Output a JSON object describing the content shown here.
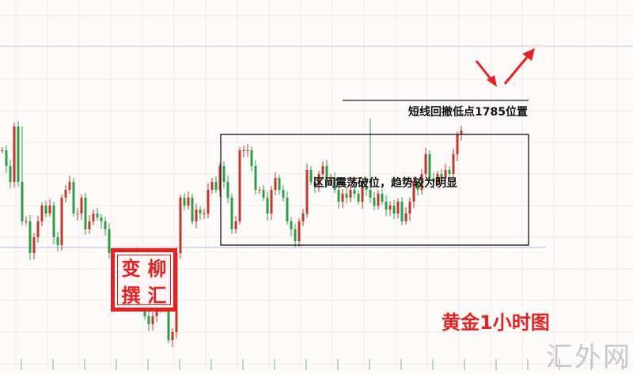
{
  "chart_data": {
    "type": "candlestick",
    "title": "黄金1小时图",
    "xlabel": "",
    "ylabel": "",
    "grid": true,
    "colors": {
      "up": "#c0392b",
      "down": "#2e9e46",
      "annotation": "#e52222",
      "support_line": "#b8b8e0"
    },
    "closes": [
      278,
      258,
      238,
      308,
      238,
      188,
      188,
      148,
      168,
      188,
      208,
      198,
      208,
      168,
      158,
      218,
      228,
      238,
      198,
      198,
      218,
      178,
      188,
      198,
      193,
      188,
      178,
      148,
      128,
      118,
      128,
      138,
      118,
      148,
      108,
      98,
      68,
      58,
      68,
      78,
      88,
      78,
      38,
      48,
      148,
      218,
      208,
      218,
      188,
      203,
      198,
      198,
      228,
      238,
      228,
      258,
      238,
      218,
      178,
      188,
      278,
      278,
      278,
      258,
      228,
      228,
      218,
      198,
      228,
      243,
      228,
      218,
      188,
      178,
      163,
      188,
      198,
      253,
      238,
      233,
      248,
      258,
      238,
      243,
      228,
      213,
      223,
      218,
      228,
      223,
      213,
      233,
      228,
      218,
      208,
      223,
      213,
      203,
      208,
      198,
      213,
      188,
      198,
      213,
      238,
      228,
      248,
      273,
      243,
      238,
      248,
      243,
      253,
      248,
      273,
      298,
      303
    ],
    "spike_highs": [
      {
        "index": 5,
        "value": 308
      },
      {
        "index": 93,
        "value": 318
      },
      {
        "index": 118,
        "value": 413
      }
    ],
    "annotations": {
      "pullback": "短线回撤低点1785位置",
      "range": "区间震荡破位，趋势较为明显"
    }
  },
  "stamp": {
    "chars": [
      "变",
      "柳",
      "撰",
      "汇"
    ]
  },
  "watermark": "汇外网"
}
